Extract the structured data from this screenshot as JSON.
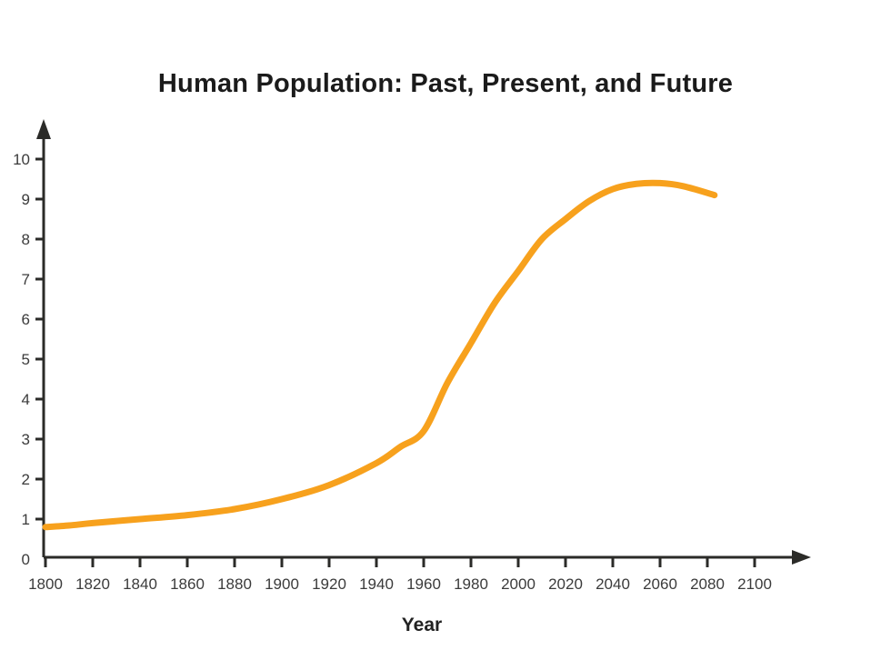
{
  "page": {
    "background": "#ffffff"
  },
  "chart_data": {
    "type": "line",
    "title": "Human Population: Past, Present, and Future",
    "xlabel": "Year",
    "ylabel": "",
    "x_ticks": [
      1800,
      1820,
      1840,
      1860,
      1880,
      1900,
      1920,
      1940,
      1960,
      1980,
      2000,
      2020,
      2040,
      2060,
      2080,
      2100
    ],
    "y_ticks": [
      0,
      1,
      2,
      3,
      4,
      5,
      6,
      7,
      8,
      9,
      10
    ],
    "xlim": [
      1800,
      2125
    ],
    "ylim": [
      0,
      10.9
    ],
    "grid": false,
    "legend": false,
    "axis_color": "#2b2b28",
    "tick_label_color": "#3b3b3b",
    "series": [
      {
        "name": "population-curve",
        "color": "#F7A11D",
        "stroke_width": 7,
        "points": [
          [
            1800,
            0.8
          ],
          [
            1810,
            0.84
          ],
          [
            1820,
            0.9
          ],
          [
            1840,
            1.0
          ],
          [
            1860,
            1.1
          ],
          [
            1880,
            1.25
          ],
          [
            1900,
            1.5
          ],
          [
            1920,
            1.85
          ],
          [
            1940,
            2.4
          ],
          [
            1950,
            2.8
          ],
          [
            1960,
            3.2
          ],
          [
            1970,
            4.4
          ],
          [
            1980,
            5.4
          ],
          [
            1990,
            6.4
          ],
          [
            2000,
            7.2
          ],
          [
            2010,
            8.0
          ],
          [
            2020,
            8.5
          ],
          [
            2030,
            8.95
          ],
          [
            2040,
            9.25
          ],
          [
            2050,
            9.38
          ],
          [
            2060,
            9.4
          ],
          [
            2070,
            9.32
          ],
          [
            2083,
            9.1
          ]
        ]
      }
    ]
  }
}
